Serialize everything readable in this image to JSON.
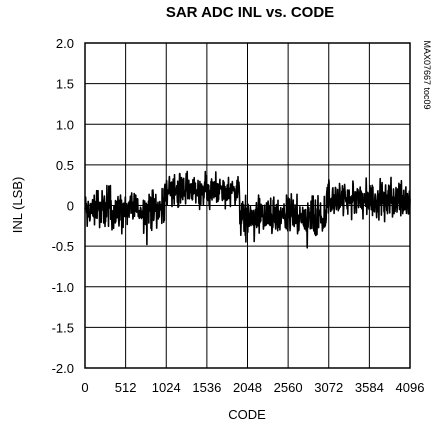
{
  "chart_data": {
    "type": "line",
    "title": "SAR ADC INL vs. CODE",
    "xlabel": "CODE",
    "ylabel": "INL (LSB)",
    "xlim": [
      0,
      4096
    ],
    "ylim": [
      -2.0,
      2.0
    ],
    "xticks": [
      "0",
      "512",
      "1024",
      "1536",
      "2048",
      "2560",
      "3072",
      "3584",
      "4096"
    ],
    "yticks": [
      "2.0",
      "1.5",
      "1.0",
      "0.5",
      "0",
      "-0.5",
      "-1.0",
      "-1.5",
      "-2.0"
    ],
    "grid": true,
    "legend": "none",
    "watermark_id": "MAX07667 toc09",
    "series": [
      {
        "line_color": "#000000",
        "segments": [
          {
            "x_start": 0,
            "x_end": 1000,
            "mean": -0.05,
            "band_low": -0.35,
            "band_high": 0.25,
            "min": -0.48
          },
          {
            "x_start": 1000,
            "x_end": 1950,
            "mean": 0.15,
            "band_low": -0.05,
            "band_high": 0.42
          },
          {
            "x_start": 1950,
            "x_end": 3040,
            "mean": -0.15,
            "band_low": -0.45,
            "band_high": 0.15,
            "min": -0.52
          },
          {
            "x_start": 3040,
            "x_end": 4096,
            "mean": 0.05,
            "band_low": -0.2,
            "band_high": 0.35
          }
        ]
      }
    ]
  }
}
